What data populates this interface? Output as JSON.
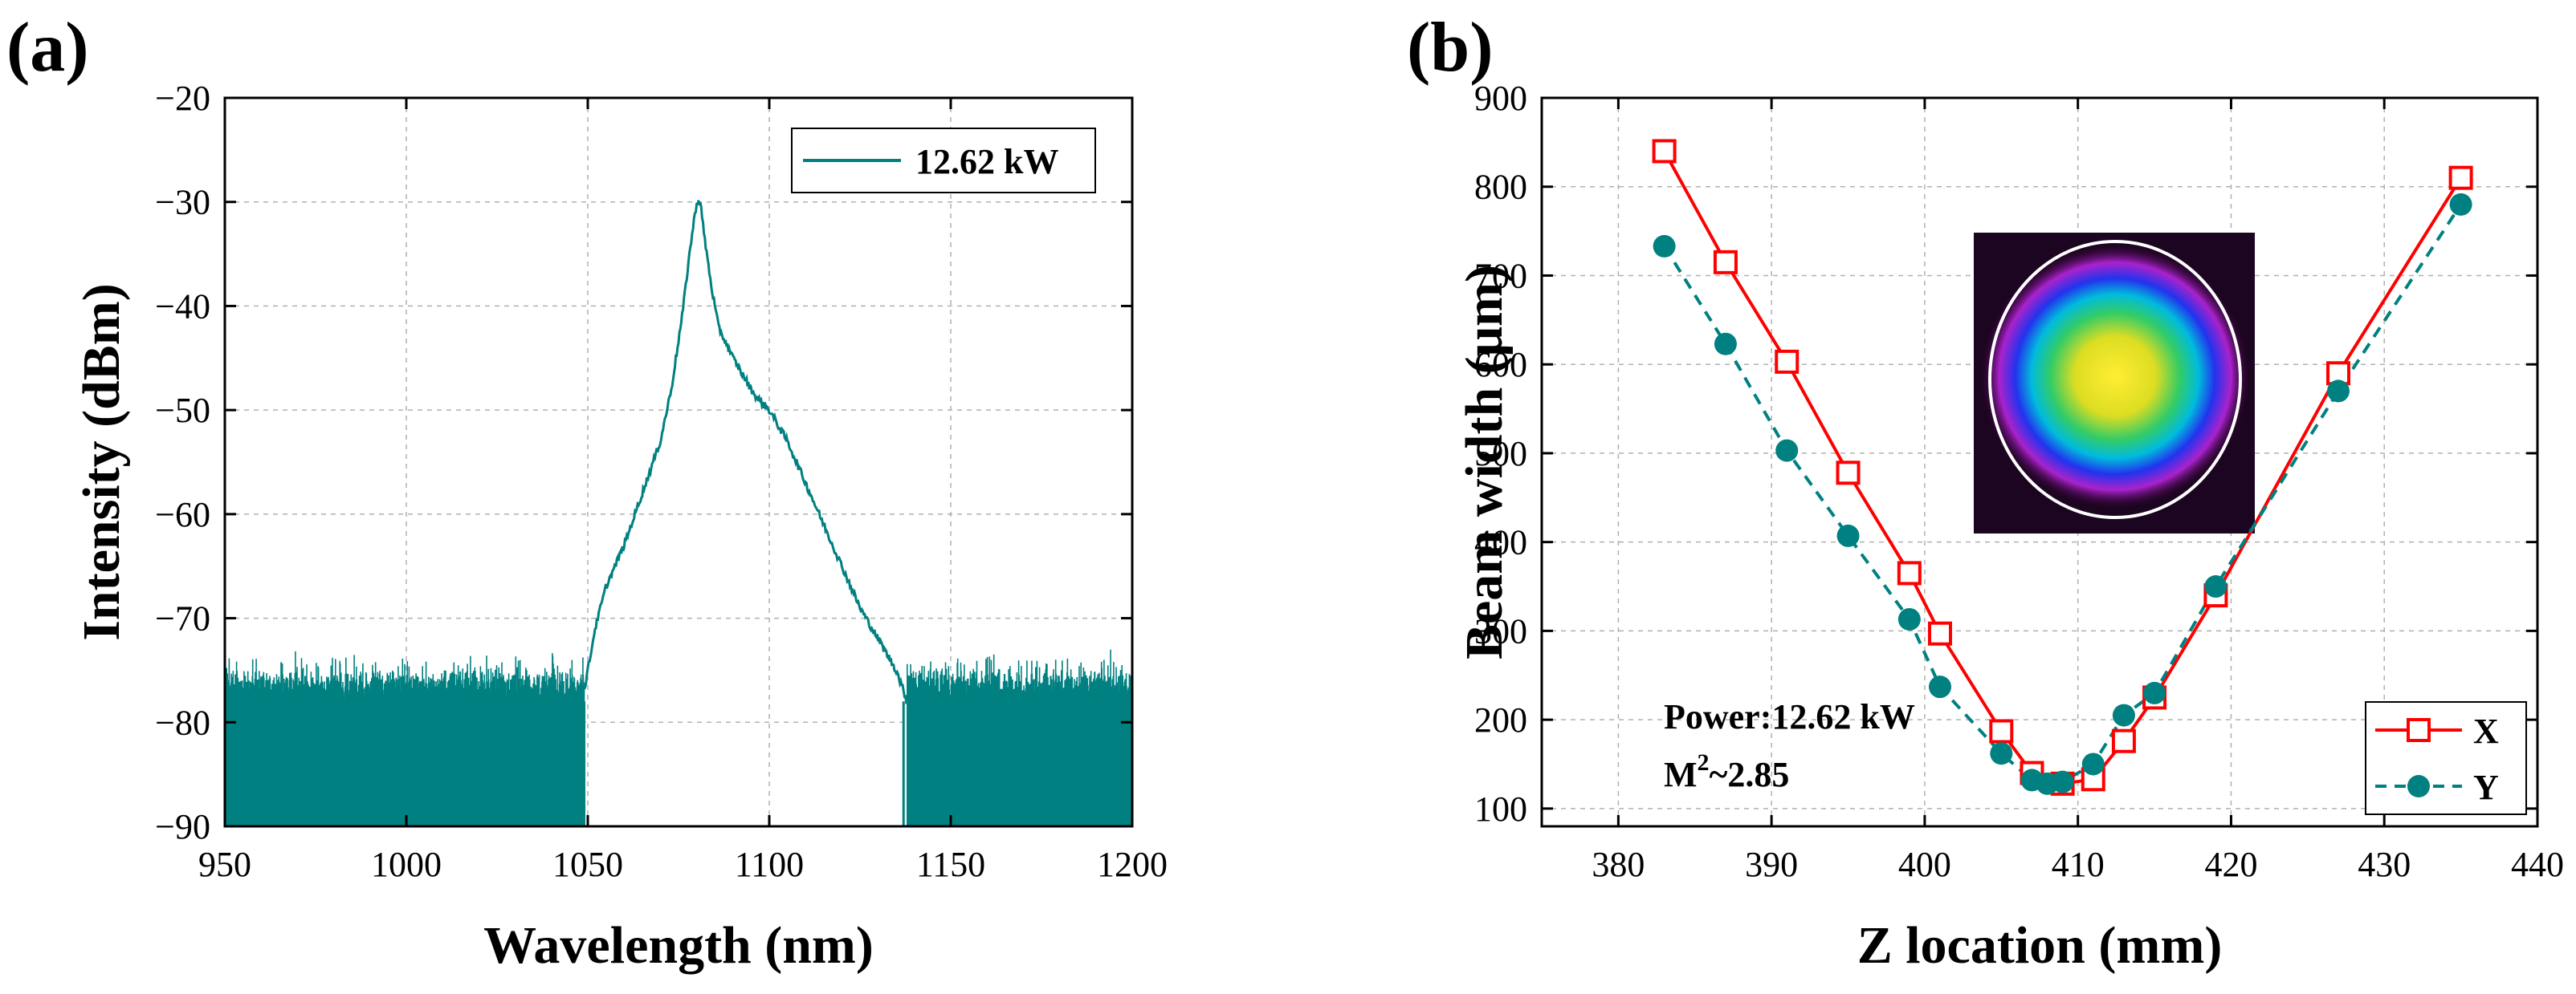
{
  "chart_data": [
    {
      "panel": "(a)",
      "type": "line",
      "title": "",
      "xlabel": "Wavelength (nm)",
      "ylabel": "Intensity (dBm)",
      "xlim": [
        950,
        1200
      ],
      "ylim": [
        -90,
        -20
      ],
      "xticks": [
        950,
        1000,
        1050,
        1100,
        1150,
        1200
      ],
      "yticks": [
        -90,
        -80,
        -70,
        -60,
        -50,
        -40,
        -30,
        -20
      ],
      "xtick_labels": [
        "950",
        "1000",
        "1050",
        "1100",
        "1150",
        "1200"
      ],
      "ytick_labels": [
        "−90",
        "−80",
        "−70",
        "−60",
        "−50",
        "−40",
        "−30",
        "−20"
      ],
      "grid": true,
      "legend": {
        "position": "top-right",
        "entries": [
          "12.62 kW"
        ]
      },
      "color": "#008080",
      "series": [
        {
          "name": "12.62 kW",
          "noise_floor": {
            "x_ranges": [
              [
                950,
                1049
              ],
              [
                1138,
                1200
              ]
            ],
            "y_band": [
              -90,
              -76
            ],
            "y_peaks": -73
          },
          "x": [
            1049,
            1052,
            1055,
            1060,
            1065,
            1070,
            1073,
            1076,
            1078,
            1080,
            1081,
            1082,
            1084,
            1086,
            1090,
            1095,
            1097,
            1100,
            1105,
            1110,
            1115,
            1120,
            1125,
            1130,
            1135,
            1138
          ],
          "values": [
            -77,
            -71,
            -67,
            -63,
            -58,
            -53,
            -48,
            -41,
            -35,
            -30,
            -30,
            -33,
            -38,
            -42,
            -45,
            -48,
            -49,
            -50,
            -53,
            -57,
            -61,
            -65,
            -69,
            -72,
            -75,
            -78
          ]
        }
      ]
    },
    {
      "panel": "(b)",
      "type": "line",
      "title": "",
      "xlabel": "Z location (mm)",
      "ylabel": "Beam width (μm)",
      "xlim": [
        375,
        440
      ],
      "ylim": [
        80,
        900
      ],
      "xticks": [
        380,
        390,
        400,
        410,
        420,
        430,
        440
      ],
      "yticks": [
        100,
        200,
        300,
        400,
        500,
        600,
        700,
        800,
        900
      ],
      "xtick_labels": [
        "380",
        "390",
        "400",
        "410",
        "420",
        "430",
        "440"
      ],
      "ytick_labels": [
        "100",
        "200",
        "300",
        "400",
        "500",
        "600",
        "700",
        "800",
        "900"
      ],
      "grid": true,
      "legend": {
        "position": "bottom-right",
        "entries": [
          "X",
          "Y"
        ]
      },
      "annotations": [
        "Power:12.62 kW",
        "M",
        "2",
        "~2.85"
      ],
      "inset": "beam-profile-image",
      "series": [
        {
          "name": "X",
          "color": "#ff0000",
          "marker": "open-square",
          "line": "solid",
          "x": [
            383,
            387,
            391,
            395,
            399,
            401,
            405,
            407,
            409,
            411,
            413,
            415,
            419,
            427,
            435
          ],
          "values": [
            840,
            715,
            603,
            478,
            365,
            297,
            187,
            140,
            128,
            133,
            176,
            225,
            340,
            590,
            810
          ]
        },
        {
          "name": "Y",
          "color": "#008080",
          "marker": "filled-circle",
          "line": "dashed",
          "x": [
            383,
            387,
            391,
            395,
            399,
            401,
            405,
            407,
            408,
            409,
            411,
            413,
            415,
            419,
            427,
            435
          ],
          "values": [
            733,
            623,
            503,
            407,
            313,
            237,
            162,
            132,
            128,
            130,
            150,
            205,
            230,
            350,
            570,
            780
          ]
        }
      ]
    }
  ]
}
